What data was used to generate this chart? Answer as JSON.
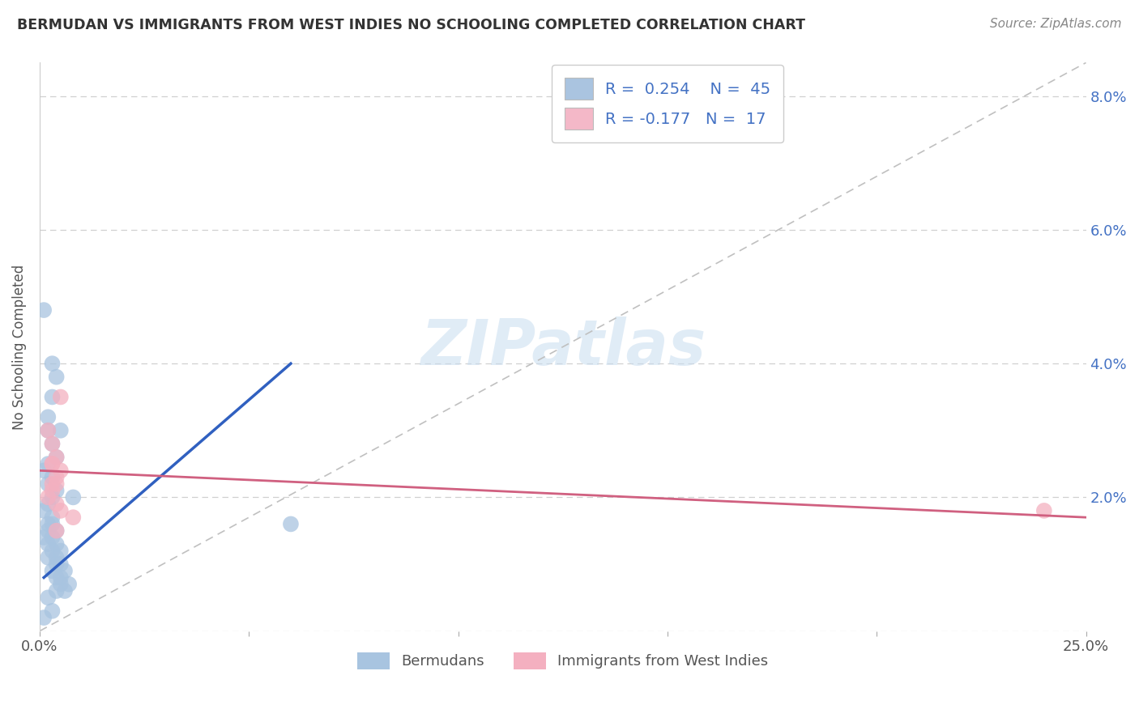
{
  "title": "BERMUDAN VS IMMIGRANTS FROM WEST INDIES NO SCHOOLING COMPLETED CORRELATION CHART",
  "source": "Source: ZipAtlas.com",
  "ylabel": "No Schooling Completed",
  "xlim": [
    0.0,
    0.25
  ],
  "ylim": [
    0.0,
    0.085
  ],
  "R1": 0.254,
  "N1": 45,
  "R2": -0.177,
  "N2": 17,
  "bermudan_color": "#a8c4e0",
  "immigrant_color": "#f4b0c0",
  "trendline_blue": "#3060c0",
  "trendline_pink": "#d06080",
  "watermark": "ZIPatlas",
  "watermark_color": "#c8ddf0",
  "legend_box_blue": "#aac4e0",
  "legend_box_pink": "#f4b8c8",
  "bermudan_x": [
    0.002,
    0.001,
    0.003,
    0.004,
    0.003,
    0.002,
    0.005,
    0.003,
    0.004,
    0.002,
    0.001,
    0.003,
    0.002,
    0.004,
    0.003,
    0.002,
    0.001,
    0.003,
    0.002,
    0.003,
    0.004,
    0.002,
    0.001,
    0.003,
    0.002,
    0.004,
    0.005,
    0.003,
    0.002,
    0.004,
    0.005,
    0.004,
    0.003,
    0.006,
    0.005,
    0.004,
    0.007,
    0.005,
    0.006,
    0.004,
    0.002,
    0.06,
    0.008,
    0.003,
    0.001
  ],
  "bermudan_y": [
    0.03,
    0.048,
    0.04,
    0.038,
    0.035,
    0.032,
    0.03,
    0.028,
    0.026,
    0.025,
    0.024,
    0.023,
    0.022,
    0.021,
    0.02,
    0.019,
    0.018,
    0.017,
    0.016,
    0.016,
    0.015,
    0.015,
    0.014,
    0.014,
    0.013,
    0.013,
    0.012,
    0.012,
    0.011,
    0.011,
    0.01,
    0.01,
    0.009,
    0.009,
    0.008,
    0.008,
    0.007,
    0.007,
    0.006,
    0.006,
    0.005,
    0.016,
    0.02,
    0.003,
    0.002
  ],
  "immigrant_x": [
    0.002,
    0.003,
    0.004,
    0.003,
    0.005,
    0.004,
    0.003,
    0.004,
    0.005,
    0.003,
    0.002,
    0.004,
    0.005,
    0.008,
    0.24,
    0.003,
    0.004
  ],
  "immigrant_y": [
    0.03,
    0.028,
    0.026,
    0.025,
    0.024,
    0.023,
    0.022,
    0.022,
    0.035,
    0.021,
    0.02,
    0.019,
    0.018,
    0.017,
    0.018,
    0.025,
    0.015
  ],
  "blue_trendline_x": [
    0.001,
    0.06
  ],
  "blue_trendline_y": [
    0.008,
    0.04
  ],
  "pink_trendline_x": [
    0.0,
    0.25
  ],
  "pink_trendline_y": [
    0.024,
    0.017
  ]
}
